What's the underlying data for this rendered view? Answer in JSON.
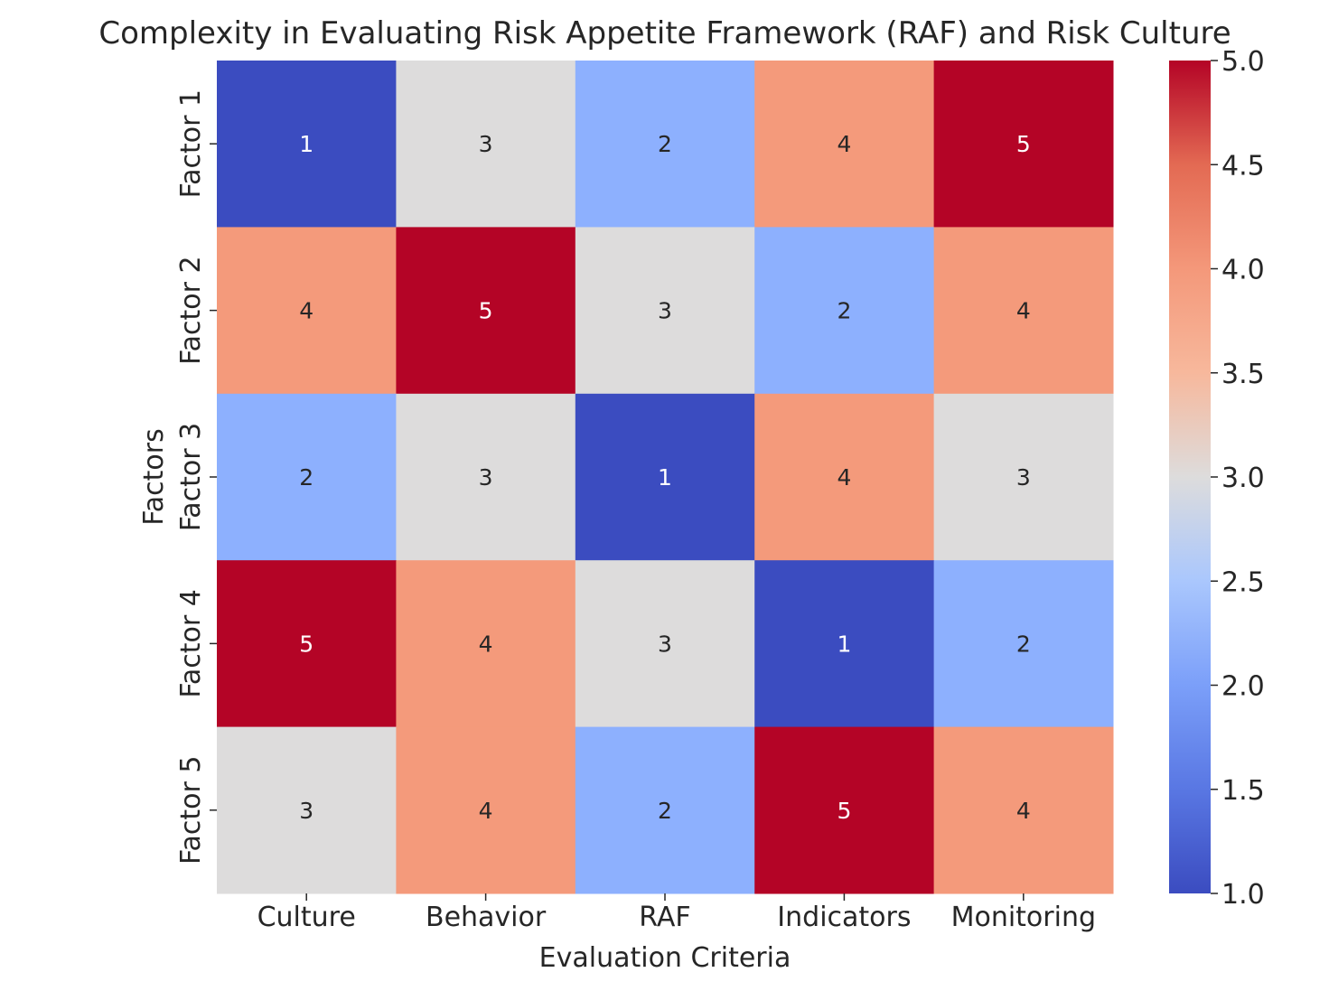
{
  "chart_data": {
    "type": "heatmap",
    "title": "Complexity in Evaluating Risk Appetite Framework (RAF) and Risk Culture",
    "xlabel": "Evaluation Criteria",
    "ylabel": "Factors",
    "x_categories": [
      "Culture",
      "Behavior",
      "RAF",
      "Indicators",
      "Monitoring"
    ],
    "y_categories": [
      "Factor 1",
      "Factor 2",
      "Factor 3",
      "Factor 4",
      "Factor 5"
    ],
    "values": [
      [
        1,
        3,
        2,
        4,
        5
      ],
      [
        4,
        5,
        3,
        2,
        4
      ],
      [
        2,
        3,
        1,
        4,
        3
      ],
      [
        5,
        4,
        3,
        1,
        2
      ],
      [
        3,
        4,
        2,
        5,
        4
      ]
    ],
    "annotated": true,
    "colormap": "coolwarm",
    "colorbar": {
      "vmin": 1.0,
      "vmax": 5.0,
      "ticks": [
        "1.0",
        "1.5",
        "2.0",
        "2.5",
        "3.0",
        "3.5",
        "4.0",
        "4.5",
        "5.0"
      ]
    },
    "colors": {
      "1": "#3b4cc0",
      "2": "#8db0fe",
      "3": "#dddcdc",
      "4": "#f49a7b",
      "5": "#b40426"
    }
  }
}
